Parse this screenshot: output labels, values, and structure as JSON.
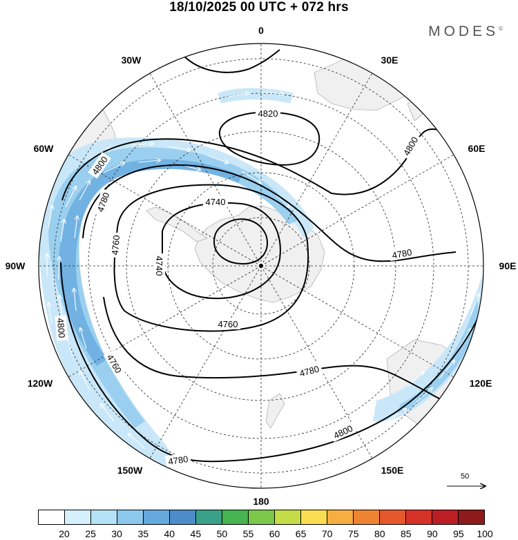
{
  "title": "18/10/2025  00 UTC  + 072 hrs",
  "brand": "MODES",
  "brand_mark": "©",
  "longitude_labels": {
    "lon_0": "0",
    "lon_30e": "30E",
    "lon_60e": "60E",
    "lon_90e": "90E",
    "lon_120e": "120E",
    "lon_150e": "150E",
    "lon_180": "180",
    "lon_150w": "150W",
    "lon_120w": "120W",
    "lon_90w": "90W",
    "lon_60w": "60W",
    "lon_30w": "30W"
  },
  "contour_labels": [
    "4820",
    "4800",
    "4800",
    "4800",
    "4800",
    "4780",
    "4780",
    "4780",
    "4780",
    "4760",
    "4760",
    "4760",
    "4740",
    "4740"
  ],
  "colorbar": {
    "labels": [
      "20",
      "25",
      "30",
      "35",
      "40",
      "45",
      "50",
      "55",
      "60",
      "65",
      "70",
      "75",
      "80",
      "85",
      "90",
      "95",
      "100"
    ],
    "colors": [
      "#ffffff",
      "#d4f0fb",
      "#b4e2f6",
      "#8cc8ec",
      "#66a9dd",
      "#4d8cc8",
      "#3aa08a",
      "#46b450",
      "#7cc84a",
      "#c4dc48",
      "#f8de50",
      "#f6ae40",
      "#ee8432",
      "#e4582c",
      "#d63228",
      "#bc1e26",
      "#8e1a1c"
    ]
  },
  "reference_vector": "50",
  "colors": {
    "land": "#f0f0f0",
    "contour": "#000000",
    "wind_light": "#c6e6f8",
    "wind_mid": "#98cdee",
    "wind_dark": "#6fb0e0"
  }
}
